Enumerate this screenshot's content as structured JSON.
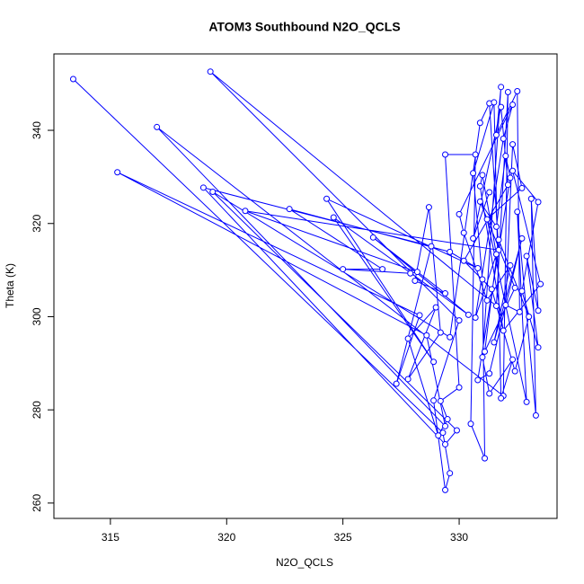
{
  "chart_data": {
    "type": "line",
    "title": "ATOM3 Southbound N2O_QCLS",
    "x_label": "N2O_QCLS",
    "y_label": "Theta (K)",
    "color": "#0000ff",
    "markers": true,
    "x": [
      313.4,
      329.3,
      329.6,
      329.4,
      328.9,
      330.0,
      319.3,
      331.6,
      332.1,
      331.9,
      317.0,
      329.4,
      328.6,
      315.3,
      328.3,
      327.3,
      328.8,
      319.0,
      329.4,
      329.9,
      319.4,
      329.6,
      330.9,
      331.3,
      331.7,
      320.8,
      328.2,
      327.9,
      325.0,
      326.7,
      322.7,
      329.6,
      330.8,
      324.3,
      328.9,
      324.6,
      330.4,
      326.3,
      329.4,
      328.1,
      328.7,
      329.2,
      327.8,
      329.0,
      327.8,
      329.1,
      329.5,
      329.2,
      330.0,
      329.4,
      330.7,
      330.5,
      331.1,
      331.0,
      330.6,
      331.5,
      331.8,
      332.3,
      331.3,
      331.0,
      331.8,
      331.6,
      332.5,
      332.6,
      332.0,
      332.3,
      332.7,
      331.2,
      332.9,
      332.5,
      333.3,
      333.1,
      333.4,
      332.9,
      333.4,
      332.7,
      333.4,
      332.3,
      333.5,
      331.9,
      330.9,
      331.0,
      331.6,
      330.7,
      331.9,
      332.3,
      330.0,
      330.2,
      331.2,
      332.2,
      331.5,
      332.7,
      331.3,
      330.8,
      332.2,
      332.0,
      331.6,
      330.9,
      332.4,
      331.1,
      331.7,
      333.0,
      332.4,
      331.4,
      330.2,
      332.1,
      331.8,
      330.6,
      331.3
    ],
    "values": [
      351.0,
      275.1,
      266.4,
      262.8,
      282.0,
      299.2,
      352.6,
      302.3,
      348.2,
      283.0,
      340.7,
      276.5,
      296.0,
      331.0,
      300.3,
      285.6,
      315.1,
      327.7,
      272.6,
      275.6,
      326.8,
      295.6,
      341.6,
      345.8,
      314.3,
      322.7,
      309.6,
      309.3,
      310.2,
      310.2,
      323.1,
      313.9,
      310.4,
      325.3,
      290.3,
      321.3,
      300.4,
      317.0,
      305.0,
      307.7,
      323.5,
      296.6,
      286.6,
      302.0,
      295.3,
      274.5,
      278.0,
      281.9,
      284.8,
      334.8,
      334.8,
      277.0,
      269.6,
      308.0,
      330.8,
      346.0,
      282.5,
      290.8,
      283.5,
      291.3,
      349.3,
      339.0,
      348.4,
      301.0,
      302.5,
      337.0,
      327.6,
      320.9,
      281.7,
      322.5,
      278.8,
      325.3,
      301.3,
      313.0,
      293.4,
      305.5,
      324.6,
      331.3,
      307.0,
      297.0,
      328.0,
      330.4,
      313.4,
      299.8,
      338.2,
      345.5,
      322.0,
      318.0,
      303.5,
      311.0,
      294.5,
      316.8,
      287.8,
      286.4,
      329.8,
      334.5,
      319.3,
      324.7,
      306.2,
      292.5,
      316.5,
      300.0,
      288.3,
      305.9,
      312.0,
      328.3,
      345.0,
      316.8,
      326.7
    ],
    "xlim": [
      312.57,
      334.21
    ],
    "ylim": [
      256.7,
      356.4
    ],
    "xticks": [
      315,
      320,
      325,
      330
    ],
    "yticks": [
      260,
      280,
      300,
      320,
      340
    ]
  }
}
